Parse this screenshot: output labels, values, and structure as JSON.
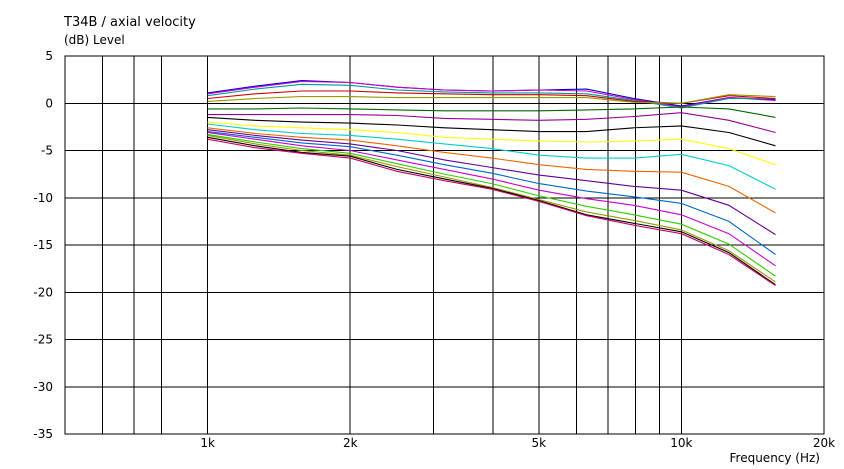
{
  "chart_data": {
    "type": "line",
    "title": "T34B / axial velocity",
    "ylabel": "(dB)  Level",
    "xlabel": "Frequency  (Hz)",
    "x_scale": "log",
    "xlim": [
      500,
      20000
    ],
    "ylim": [
      -35,
      5
    ],
    "grid": true,
    "y_ticks": [
      5,
      0,
      -5,
      -10,
      -15,
      -20,
      -25,
      -30,
      -35
    ],
    "x_tick_labels": [
      {
        "value": 1000,
        "label": "1k"
      },
      {
        "value": 2000,
        "label": "2k"
      },
      {
        "value": 5000,
        "label": "5k"
      },
      {
        "value": 10000,
        "label": "10k"
      },
      {
        "value": 20000,
        "label": "20k"
      }
    ],
    "x_gridlines": [
      600,
      700,
      800,
      1000,
      2000,
      3000,
      4000,
      5000,
      6000,
      7000,
      8000,
      9000,
      10000
    ],
    "x": [
      1000,
      1260,
      1580,
      2000,
      2510,
      3160,
      3980,
      5010,
      6310,
      7940,
      10000,
      12600,
      15800
    ],
    "series": [
      {
        "color": "#0000cc",
        "values": [
          1.1,
          1.8,
          2.4,
          2.2,
          1.7,
          1.4,
          1.3,
          1.4,
          1.5,
          0.5,
          -0.3,
          0.6,
          0.4
        ]
      },
      {
        "color": "#cc00cc",
        "values": [
          1.0,
          1.7,
          2.3,
          2.2,
          1.7,
          1.4,
          1.3,
          1.4,
          1.3,
          0.4,
          -0.4,
          0.6,
          0.3
        ]
      },
      {
        "color": "#009999",
        "values": [
          0.8,
          1.5,
          2.0,
          1.9,
          1.4,
          1.2,
          1.1,
          1.1,
          1.0,
          0.3,
          -0.5,
          0.5,
          0.5
        ]
      },
      {
        "color": "#cc0000",
        "values": [
          0.5,
          1.0,
          1.3,
          1.3,
          1.1,
          1.0,
          0.9,
          0.9,
          0.8,
          0.2,
          0.0,
          0.8,
          0.5
        ]
      },
      {
        "color": "#999900",
        "values": [
          0.2,
          0.5,
          0.7,
          0.7,
          0.6,
          0.6,
          0.6,
          0.6,
          0.6,
          0.1,
          0.0,
          0.9,
          0.7
        ]
      },
      {
        "color": "#006600",
        "values": [
          -0.6,
          -0.6,
          -0.5,
          -0.6,
          -0.7,
          -0.8,
          -0.8,
          -0.8,
          -0.7,
          -0.6,
          -0.4,
          -0.6,
          -1.5
        ]
      },
      {
        "color": "#990099",
        "values": [
          -1.2,
          -1.2,
          -1.2,
          -1.2,
          -1.3,
          -1.6,
          -1.7,
          -1.8,
          -1.7,
          -1.4,
          -1.0,
          -1.8,
          -3.1
        ]
      },
      {
        "color": "#000000",
        "values": [
          -1.5,
          -1.8,
          -2.0,
          -2.1,
          -2.3,
          -2.6,
          -2.8,
          -3.0,
          -3.0,
          -2.6,
          -2.4,
          -3.1,
          -4.5
        ]
      },
      {
        "color": "#ffff00",
        "values": [
          -2.0,
          -2.4,
          -2.6,
          -2.8,
          -3.1,
          -3.6,
          -3.8,
          -4.0,
          -4.1,
          -4.0,
          -3.8,
          -4.8,
          -6.5
        ]
      },
      {
        "color": "#00cccc",
        "values": [
          -2.2,
          -2.8,
          -3.2,
          -3.4,
          -3.8,
          -4.3,
          -4.8,
          -5.5,
          -5.8,
          -5.8,
          -5.4,
          -6.6,
          -9.1
        ]
      },
      {
        "color": "#ee6600",
        "values": [
          -2.6,
          -3.2,
          -3.6,
          -3.9,
          -4.5,
          -5.2,
          -5.8,
          -6.5,
          -7.0,
          -7.2,
          -7.3,
          -8.8,
          -11.6
        ]
      },
      {
        "color": "#660099",
        "values": [
          -2.8,
          -3.4,
          -3.9,
          -4.3,
          -5.0,
          -6.0,
          -6.8,
          -7.6,
          -8.2,
          -8.8,
          -9.2,
          -10.8,
          -13.9
        ]
      },
      {
        "color": "#0066cc",
        "values": [
          -3.0,
          -3.6,
          -4.2,
          -4.6,
          -5.5,
          -6.5,
          -7.4,
          -8.5,
          -9.3,
          -9.9,
          -10.6,
          -12.5,
          -16.0
        ]
      },
      {
        "color": "#cc00cc",
        "values": [
          -3.1,
          -3.8,
          -4.5,
          -5.0,
          -6.0,
          -7.0,
          -8.0,
          -9.2,
          -10.1,
          -10.8,
          -11.8,
          -13.8,
          -17.2
        ]
      },
      {
        "color": "#33cc00",
        "values": [
          -3.3,
          -4.1,
          -4.8,
          -5.3,
          -6.4,
          -7.5,
          -8.5,
          -9.8,
          -10.9,
          -11.8,
          -12.8,
          -14.9,
          -18.3
        ]
      },
      {
        "color": "#999900",
        "values": [
          -3.4,
          -4.3,
          -5.0,
          -5.5,
          -6.7,
          -7.8,
          -8.9,
          -10.2,
          -11.5,
          -12.4,
          -13.4,
          -15.6,
          -18.9
        ]
      },
      {
        "color": "#000000",
        "values": [
          -3.6,
          -4.5,
          -5.2,
          -5.6,
          -7.0,
          -8.0,
          -9.0,
          -10.3,
          -11.8,
          -12.7,
          -13.6,
          -15.8,
          -19.2
        ]
      },
      {
        "color": "#cc0066",
        "values": [
          -3.8,
          -4.7,
          -5.3,
          -5.8,
          -7.2,
          -8.2,
          -9.1,
          -10.4,
          -11.9,
          -12.9,
          -13.8,
          -16.0,
          -19.3
        ]
      }
    ]
  }
}
